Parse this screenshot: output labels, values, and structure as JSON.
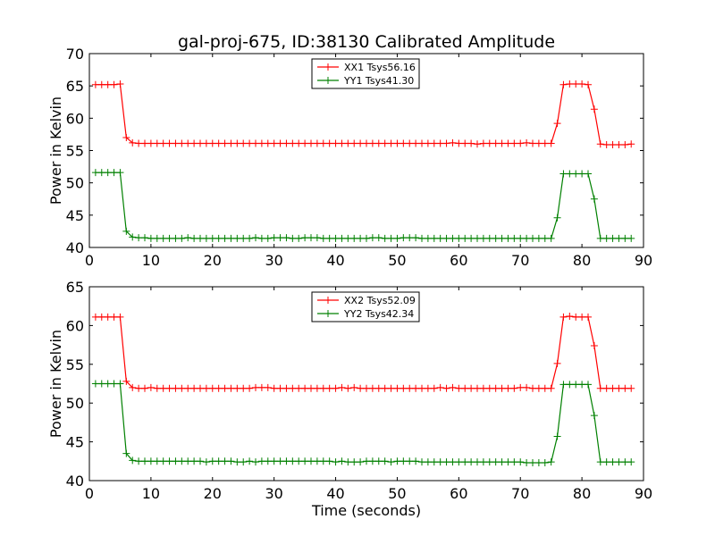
{
  "chart_data": [
    {
      "type": "line",
      "title": "gal-proj-675, ID:38130 Calibrated Amplitude",
      "xlabel": "",
      "ylabel": "Power in Kelvin",
      "xlim": [
        0,
        90
      ],
      "ylim": [
        40,
        70
      ],
      "xticks": [
        0,
        10,
        20,
        30,
        40,
        50,
        60,
        70,
        80,
        90
      ],
      "yticks": [
        40,
        45,
        50,
        55,
        60,
        65,
        70
      ],
      "grid": false,
      "legend_position": "top-center",
      "x": [
        1,
        2,
        3,
        4,
        5,
        6,
        7,
        8,
        9,
        10,
        11,
        12,
        13,
        14,
        15,
        16,
        17,
        18,
        19,
        20,
        21,
        22,
        23,
        24,
        25,
        26,
        27,
        28,
        29,
        30,
        31,
        32,
        33,
        34,
        35,
        36,
        37,
        38,
        39,
        40,
        41,
        42,
        43,
        44,
        45,
        46,
        47,
        48,
        49,
        50,
        51,
        52,
        53,
        54,
        55,
        56,
        57,
        58,
        59,
        60,
        61,
        62,
        63,
        64,
        65,
        66,
        67,
        68,
        69,
        70,
        71,
        72,
        73,
        74,
        75,
        76,
        77,
        78,
        79,
        80,
        81,
        82,
        83,
        84,
        85,
        86,
        87,
        88
      ],
      "series": [
        {
          "name": "XX1 Tsys56.16",
          "color": "#ff0000",
          "values": [
            65.2,
            65.2,
            65.2,
            65.2,
            65.3,
            57.0,
            56.2,
            56.1,
            56.1,
            56.1,
            56.1,
            56.1,
            56.1,
            56.1,
            56.1,
            56.1,
            56.1,
            56.1,
            56.1,
            56.1,
            56.1,
            56.1,
            56.1,
            56.1,
            56.1,
            56.1,
            56.1,
            56.1,
            56.1,
            56.1,
            56.1,
            56.1,
            56.1,
            56.1,
            56.1,
            56.1,
            56.1,
            56.1,
            56.1,
            56.1,
            56.1,
            56.1,
            56.1,
            56.1,
            56.1,
            56.1,
            56.1,
            56.1,
            56.1,
            56.1,
            56.1,
            56.1,
            56.1,
            56.1,
            56.1,
            56.1,
            56.1,
            56.1,
            56.2,
            56.1,
            56.1,
            56.1,
            56.0,
            56.1,
            56.1,
            56.1,
            56.1,
            56.1,
            56.1,
            56.1,
            56.2,
            56.1,
            56.1,
            56.1,
            56.1,
            59.2,
            65.2,
            65.3,
            65.3,
            65.3,
            65.2,
            61.4,
            56.0,
            55.9,
            55.9,
            55.9,
            55.9,
            56.0
          ]
        },
        {
          "name": "YY1 Tsys41.30",
          "color": "#008000",
          "values": [
            51.6,
            51.6,
            51.6,
            51.6,
            51.6,
            42.5,
            41.6,
            41.5,
            41.5,
            41.4,
            41.4,
            41.4,
            41.4,
            41.4,
            41.4,
            41.5,
            41.4,
            41.4,
            41.4,
            41.4,
            41.4,
            41.4,
            41.4,
            41.4,
            41.4,
            41.4,
            41.5,
            41.4,
            41.4,
            41.5,
            41.5,
            41.5,
            41.4,
            41.4,
            41.5,
            41.5,
            41.5,
            41.4,
            41.4,
            41.4,
            41.4,
            41.4,
            41.4,
            41.4,
            41.4,
            41.5,
            41.5,
            41.4,
            41.4,
            41.4,
            41.5,
            41.5,
            41.5,
            41.4,
            41.4,
            41.4,
            41.4,
            41.4,
            41.4,
            41.4,
            41.4,
            41.4,
            41.4,
            41.4,
            41.4,
            41.4,
            41.4,
            41.4,
            41.4,
            41.4,
            41.4,
            41.4,
            41.4,
            41.4,
            41.4,
            44.6,
            51.4,
            51.4,
            51.4,
            51.4,
            51.4,
            47.5,
            41.4,
            41.4,
            41.4,
            41.4,
            41.4,
            41.4
          ]
        }
      ]
    },
    {
      "type": "line",
      "title": "",
      "xlabel": "Time (seconds)",
      "ylabel": "Power in Kelvin",
      "xlim": [
        0,
        90
      ],
      "ylim": [
        40,
        65
      ],
      "xticks": [
        0,
        10,
        20,
        30,
        40,
        50,
        60,
        70,
        80,
        90
      ],
      "yticks": [
        40,
        45,
        50,
        55,
        60,
        65
      ],
      "grid": false,
      "legend_position": "top-center",
      "x": [
        1,
        2,
        3,
        4,
        5,
        6,
        7,
        8,
        9,
        10,
        11,
        12,
        13,
        14,
        15,
        16,
        17,
        18,
        19,
        20,
        21,
        22,
        23,
        24,
        25,
        26,
        27,
        28,
        29,
        30,
        31,
        32,
        33,
        34,
        35,
        36,
        37,
        38,
        39,
        40,
        41,
        42,
        43,
        44,
        45,
        46,
        47,
        48,
        49,
        50,
        51,
        52,
        53,
        54,
        55,
        56,
        57,
        58,
        59,
        60,
        61,
        62,
        63,
        64,
        65,
        66,
        67,
        68,
        69,
        70,
        71,
        72,
        73,
        74,
        75,
        76,
        77,
        78,
        79,
        80,
        81,
        82,
        83,
        84,
        85,
        86,
        87,
        88
      ],
      "series": [
        {
          "name": "XX2 Tsys52.09",
          "color": "#ff0000",
          "values": [
            61.1,
            61.1,
            61.1,
            61.1,
            61.1,
            52.8,
            52.0,
            51.9,
            51.9,
            52.0,
            51.9,
            51.9,
            51.9,
            51.9,
            51.9,
            51.9,
            51.9,
            51.9,
            51.9,
            51.9,
            51.9,
            51.9,
            51.9,
            51.9,
            51.9,
            51.9,
            52.0,
            52.0,
            52.0,
            51.9,
            51.9,
            51.9,
            51.9,
            51.9,
            51.9,
            51.9,
            51.9,
            51.9,
            51.9,
            51.9,
            52.0,
            51.9,
            52.0,
            51.9,
            51.9,
            51.9,
            51.9,
            51.9,
            51.9,
            51.9,
            51.9,
            51.9,
            51.9,
            51.9,
            51.9,
            51.9,
            52.0,
            51.9,
            52.0,
            51.9,
            51.9,
            51.9,
            51.9,
            51.9,
            51.9,
            51.9,
            51.9,
            51.9,
            51.9,
            52.0,
            52.0,
            51.9,
            51.9,
            51.9,
            51.9,
            55.1,
            61.1,
            61.2,
            61.1,
            61.1,
            61.1,
            57.4,
            51.9,
            51.9,
            51.9,
            51.9,
            51.9,
            51.9
          ]
        },
        {
          "name": "YY2 Tsys42.34",
          "color": "#008000",
          "values": [
            52.5,
            52.5,
            52.5,
            52.5,
            52.5,
            43.5,
            42.6,
            42.5,
            42.5,
            42.5,
            42.5,
            42.5,
            42.5,
            42.5,
            42.5,
            42.5,
            42.5,
            42.5,
            42.4,
            42.5,
            42.5,
            42.5,
            42.5,
            42.4,
            42.4,
            42.5,
            42.4,
            42.5,
            42.5,
            42.5,
            42.5,
            42.5,
            42.5,
            42.5,
            42.5,
            42.5,
            42.5,
            42.5,
            42.5,
            42.4,
            42.5,
            42.4,
            42.4,
            42.4,
            42.5,
            42.5,
            42.5,
            42.5,
            42.4,
            42.5,
            42.5,
            42.5,
            42.5,
            42.4,
            42.4,
            42.4,
            42.4,
            42.4,
            42.4,
            42.4,
            42.4,
            42.4,
            42.4,
            42.4,
            42.4,
            42.4,
            42.4,
            42.4,
            42.4,
            42.4,
            42.3,
            42.3,
            42.3,
            42.3,
            42.4,
            45.7,
            52.4,
            52.4,
            52.4,
            52.4,
            52.4,
            48.4,
            42.4,
            42.4,
            42.4,
            42.4,
            42.4,
            42.4
          ]
        }
      ]
    }
  ]
}
